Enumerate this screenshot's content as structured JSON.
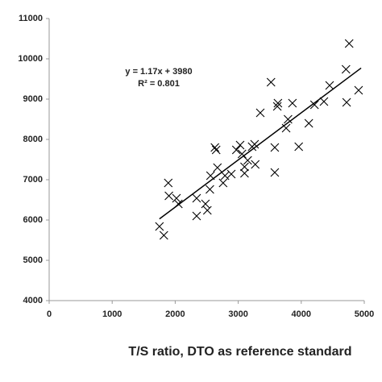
{
  "chart_data": {
    "type": "scatter",
    "x_label": "T/S ratio, DTO as reference standard",
    "annotations": [
      "y = 1.17x + 3980",
      "R² = 0.801"
    ],
    "color": "#000000",
    "x": [
      1750,
      1820,
      1890,
      1900,
      2020,
      2050,
      2340,
      2340,
      2480,
      2510,
      2550,
      2560,
      2630,
      2650,
      2670,
      2760,
      2790,
      2890,
      2970,
      3030,
      3060,
      3100,
      3100,
      3150,
      3220,
      3260,
      3270,
      3350,
      3520,
      3580,
      3580,
      3620,
      3630,
      3760,
      3790,
      3860,
      3960,
      4120,
      4210,
      4360,
      4450,
      4710,
      4720,
      4760,
      4910
    ],
    "values": [
      5840,
      5620,
      6920,
      6600,
      6540,
      6400,
      6100,
      6540,
      6400,
      6240,
      6760,
      7100,
      7800,
      7740,
      7300,
      6920,
      7100,
      7140,
      7740,
      7860,
      7640,
      7160,
      7320,
      7480,
      7820,
      7880,
      7380,
      8660,
      9420,
      7800,
      7180,
      8820,
      8900,
      8280,
      8500,
      8900,
      7820,
      8400,
      8860,
      8940,
      9340,
      9740,
      8920,
      10380,
      9220
    ],
    "trendline": {
      "slope": 1.17,
      "intercept": 3980,
      "x_range": [
        1750,
        4950
      ]
    },
    "xlim": [
      0,
      5000
    ],
    "xticks": [
      0,
      1000,
      2000,
      3000,
      4000,
      5000
    ],
    "ylim": [
      4000,
      11000
    ],
    "yticks": [
      4000,
      5000,
      6000,
      7000,
      8000,
      9000,
      10000,
      11000
    ],
    "grid": false
  }
}
